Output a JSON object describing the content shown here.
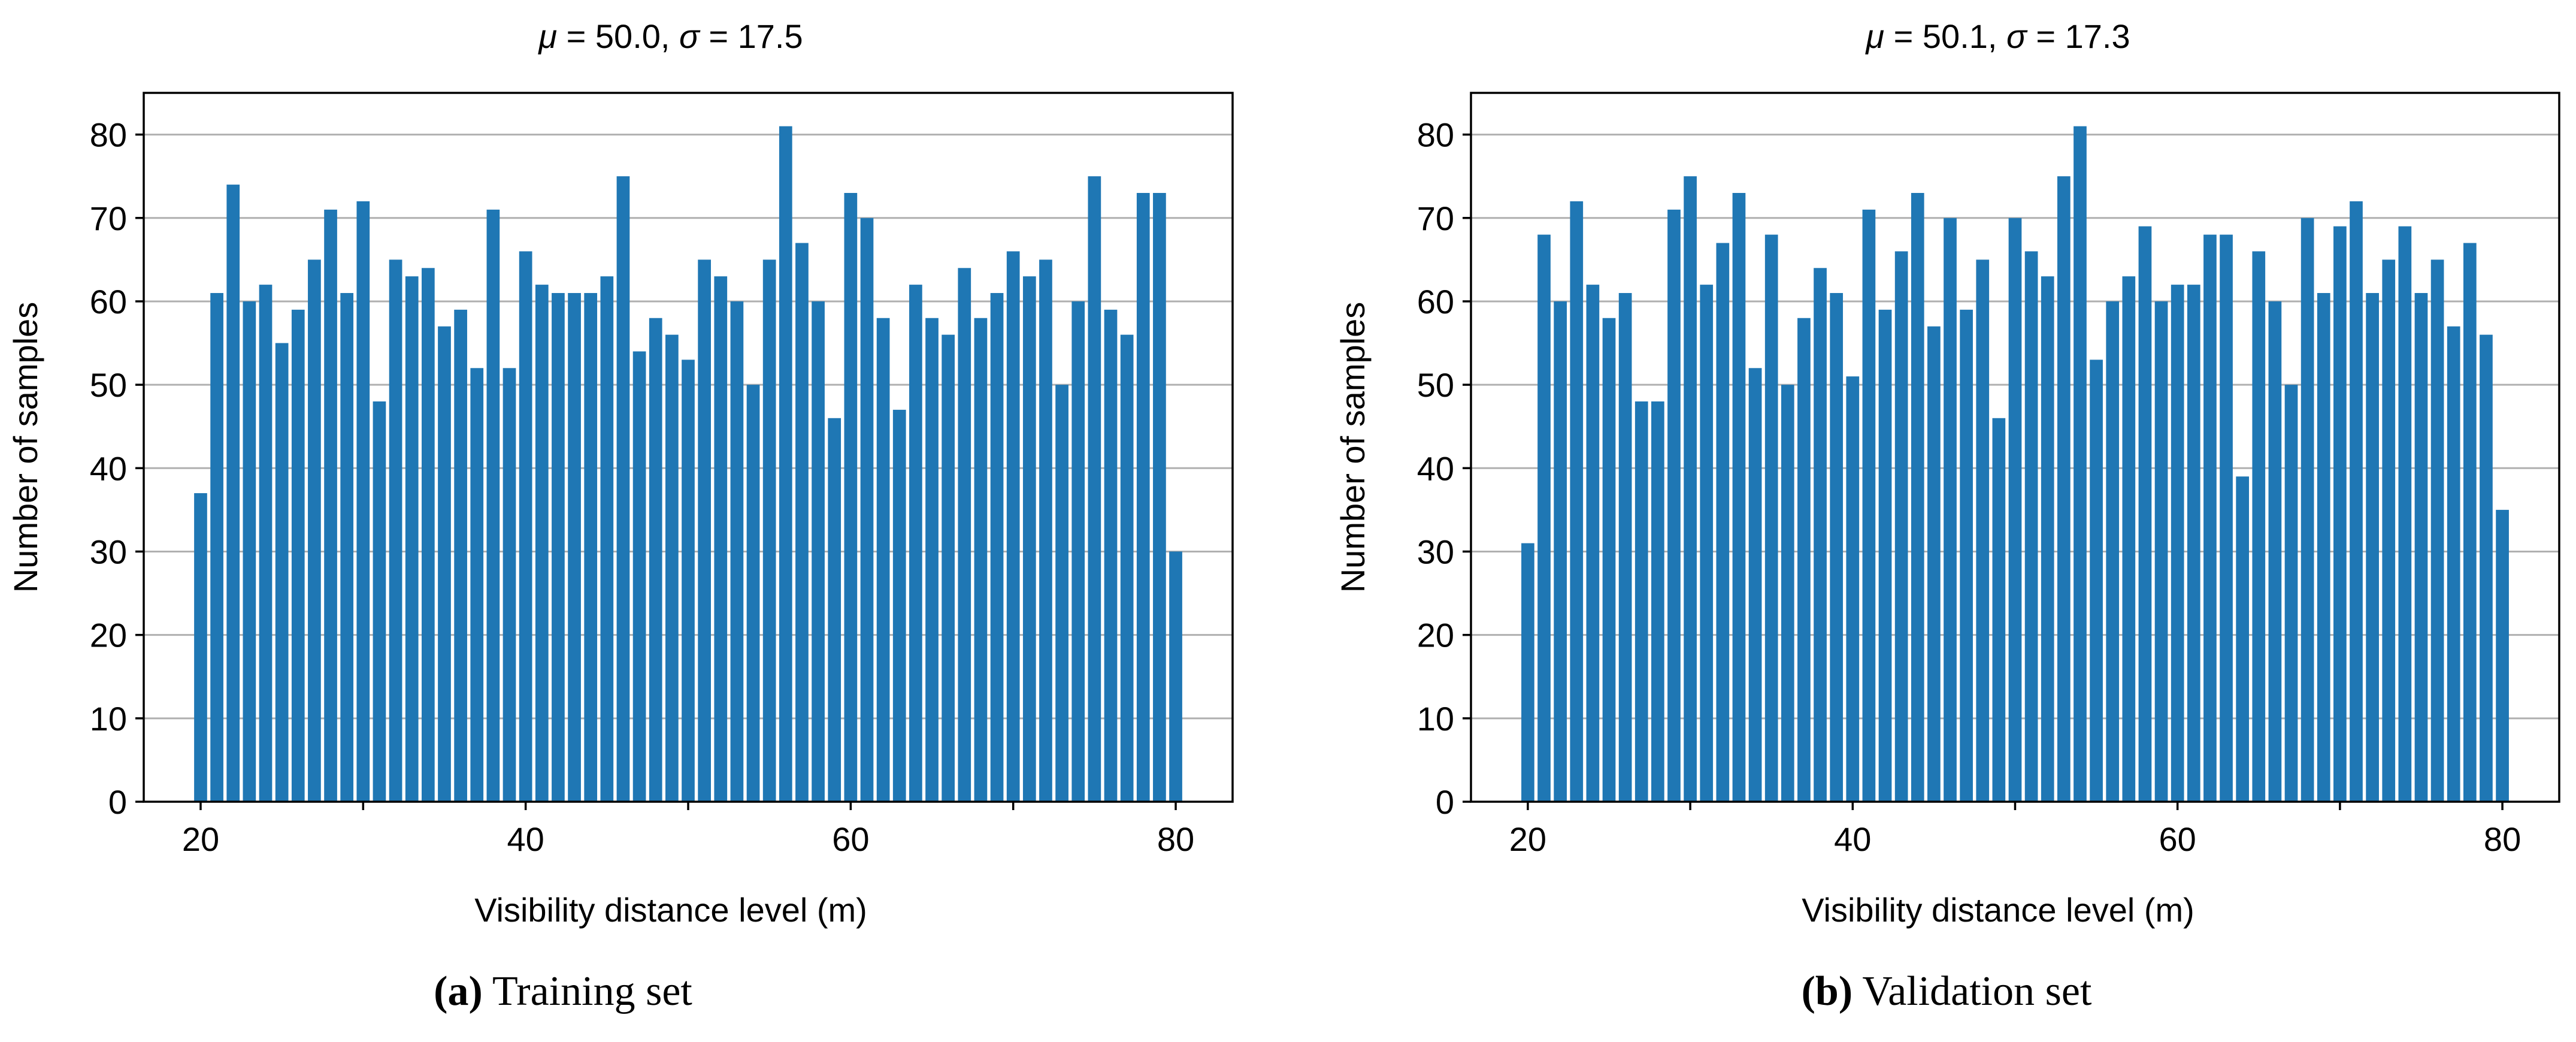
{
  "chart_data": [
    {
      "type": "bar",
      "id": "training",
      "title_prefix": "μ",
      "title_mid": " = 50.0, ",
      "title_sigma": "σ",
      "title_suffix": " = 17.5",
      "xlabel": "Visibility distance level (m)",
      "ylabel": "Number of samples",
      "xlim": [
        16.5,
        83.5
      ],
      "ylim": [
        0,
        85
      ],
      "xticks": [
        20,
        40,
        60,
        80
      ],
      "yticks": [
        0,
        10,
        20,
        30,
        40,
        50,
        60,
        70,
        80
      ],
      "grid": "y",
      "bar_color": "#1f77b4",
      "x": [
        20,
        21,
        22,
        23,
        24,
        25,
        26,
        27,
        28,
        29,
        30,
        31,
        32,
        33,
        34,
        35,
        36,
        37,
        38,
        39,
        40,
        41,
        42,
        43,
        44,
        45,
        46,
        47,
        48,
        49,
        50,
        51,
        52,
        53,
        54,
        55,
        56,
        57,
        58,
        59,
        60,
        61,
        62,
        63,
        64,
        65,
        66,
        67,
        68,
        69,
        70,
        71,
        72,
        73,
        74,
        75,
        76,
        77,
        78,
        79,
        80
      ],
      "values": [
        37,
        61,
        74,
        60,
        62,
        55,
        59,
        65,
        71,
        61,
        72,
        48,
        65,
        63,
        64,
        57,
        59,
        52,
        71,
        52,
        66,
        62,
        61,
        61,
        61,
        63,
        75,
        54,
        58,
        56,
        53,
        65,
        63,
        60,
        50,
        65,
        81,
        67,
        60,
        46,
        73,
        70,
        58,
        47,
        62,
        58,
        56,
        64,
        58,
        61,
        66,
        63,
        65,
        50,
        60,
        75,
        59,
        56,
        73,
        73,
        30
      ],
      "caption_letter": "(a)",
      "caption_text": " Training set"
    },
    {
      "type": "bar",
      "id": "validation",
      "title_prefix": "μ",
      "title_mid": " = 50.1, ",
      "title_sigma": "σ",
      "title_suffix": " = 17.3",
      "xlabel": "Visibility distance level (m)",
      "ylabel": "Number of samples",
      "xlim": [
        16.5,
        83.5
      ],
      "ylim": [
        0,
        85
      ],
      "xticks": [
        20,
        40,
        60,
        80
      ],
      "yticks": [
        0,
        10,
        20,
        30,
        40,
        50,
        60,
        70,
        80
      ],
      "grid": "y",
      "bar_color": "#1f77b4",
      "x": [
        20,
        21,
        22,
        23,
        24,
        25,
        26,
        27,
        28,
        29,
        30,
        31,
        32,
        33,
        34,
        35,
        36,
        37,
        38,
        39,
        40,
        41,
        42,
        43,
        44,
        45,
        46,
        47,
        48,
        49,
        50,
        51,
        52,
        53,
        54,
        55,
        56,
        57,
        58,
        59,
        60,
        61,
        62,
        63,
        64,
        65,
        66,
        67,
        68,
        69,
        70,
        71,
        72,
        73,
        74,
        75,
        76,
        77,
        78,
        79,
        80
      ],
      "values": [
        31,
        68,
        60,
        72,
        62,
        58,
        61,
        48,
        48,
        71,
        75,
        62,
        67,
        73,
        52,
        68,
        50,
        58,
        64,
        61,
        51,
        71,
        59,
        66,
        73,
        57,
        70,
        59,
        65,
        46,
        70,
        66,
        63,
        75,
        81,
        53,
        60,
        63,
        69,
        60,
        62,
        62,
        68,
        68,
        39,
        66,
        60,
        50,
        70,
        61,
        69,
        72,
        61,
        65,
        69,
        61,
        65,
        57,
        67,
        56,
        35
      ],
      "caption_letter": "(b)",
      "caption_text": " Validation set"
    }
  ]
}
